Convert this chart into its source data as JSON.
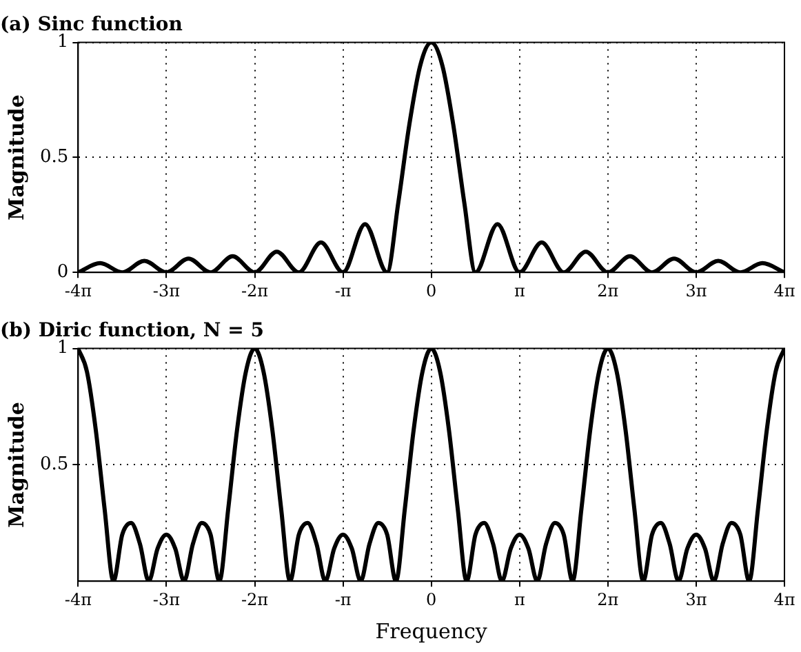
{
  "chart_data": [
    {
      "type": "line",
      "title": "(a) Sinc function",
      "ylabel": "Magnitude",
      "xlim": [
        -12.566,
        12.566
      ],
      "ylim": [
        0,
        1
      ],
      "xticks": [
        {
          "value": -12.566,
          "label": "-4π"
        },
        {
          "value": -9.425,
          "label": "-3π"
        },
        {
          "value": -6.283,
          "label": "-2π"
        },
        {
          "value": -3.142,
          "label": "-π"
        },
        0,
        {
          "value": 3.142,
          "label": "π"
        },
        {
          "value": 6.283,
          "label": "2π"
        },
        {
          "value": 9.425,
          "label": "3π"
        },
        {
          "value": 12.566,
          "label": "4π"
        }
      ],
      "yticks": [
        0,
        0.5,
        1
      ],
      "grid": true,
      "legend": false,
      "marker": "none",
      "line_style": "solid",
      "series": [
        {
          "color": "#000000",
          "x": [
            -12.566,
            -11.781,
            -10.996,
            -10.21,
            -9.425,
            -8.639,
            -7.854,
            -7.069,
            -6.283,
            -5.498,
            -4.712,
            -3.927,
            -3.142,
            -2.356,
            -1.571,
            -1.178,
            -0.785,
            -0.393,
            0,
            0.393,
            0.785,
            1.178,
            1.571,
            2.356,
            3.142,
            3.927,
            4.712,
            5.498,
            6.283,
            7.069,
            7.854,
            8.639,
            9.425,
            10.21,
            10.996,
            11.781,
            12.566
          ],
          "values": [
            0,
            0.04,
            0,
            0.05,
            0,
            0.06,
            0,
            0.07,
            0,
            0.09,
            0,
            0.13,
            0,
            0.21,
            0,
            0.3,
            0.64,
            0.9,
            1,
            0.9,
            0.64,
            0.3,
            0,
            0.21,
            0,
            0.13,
            0,
            0.09,
            0,
            0.07,
            0,
            0.06,
            0,
            0.05,
            0,
            0.04,
            0
          ]
        }
      ]
    },
    {
      "type": "line",
      "title": "(b) Diric function, N = 5",
      "xlabel": "Frequency",
      "ylabel": "Magnitude",
      "xlim": [
        -12.566,
        12.566
      ],
      "ylim": [
        0,
        1
      ],
      "xticks": [
        {
          "value": -12.566,
          "label": "-4π"
        },
        {
          "value": -9.425,
          "label": "-3π"
        },
        {
          "value": -6.283,
          "label": "-2π"
        },
        {
          "value": -3.142,
          "label": "-π"
        },
        0,
        {
          "value": 3.142,
          "label": "π"
        },
        {
          "value": 6.283,
          "label": "2π"
        },
        {
          "value": 9.425,
          "label": "3π"
        },
        {
          "value": 12.566,
          "label": "4π"
        }
      ],
      "yticks": [
        0.5,
        1
      ],
      "grid": true,
      "legend": false,
      "marker": "none",
      "line_style": "solid",
      "series": [
        {
          "color": "#000000",
          "x": [
            -12.566,
            -12.252,
            -11.938,
            -11.624,
            -11.31,
            -10.996,
            -10.681,
            -10.367,
            -10.053,
            -9.739,
            -9.425,
            -9.111,
            -8.796,
            -8.482,
            -8.168,
            -7.854,
            -7.54,
            -7.226,
            -6.912,
            -6.597,
            -6.283,
            -5.969,
            -5.655,
            -5.341,
            -5.027,
            -4.712,
            -4.398,
            -4.084,
            -3.77,
            -3.456,
            -3.142,
            -2.827,
            -2.513,
            -2.199,
            -1.885,
            -1.571,
            -1.257,
            -0.942,
            -0.628,
            -0.314,
            0,
            0.314,
            0.628,
            0.942,
            1.257,
            1.571,
            1.885,
            2.199,
            2.513,
            2.827,
            3.142,
            3.456,
            3.77,
            4.084,
            4.398,
            4.712,
            5.027,
            5.341,
            5.655,
            5.969,
            6.283,
            6.597,
            6.912,
            7.226,
            7.54,
            7.854,
            8.168,
            8.482,
            8.796,
            9.111,
            9.425,
            9.739,
            10.053,
            10.367,
            10.681,
            10.996,
            11.31,
            11.624,
            11.938,
            12.252,
            12.566
          ],
          "values": [
            1,
            0.9,
            0.65,
            0.31,
            0,
            0.2,
            0.25,
            0.16,
            0,
            0.14,
            0.2,
            0.14,
            0,
            0.16,
            0.25,
            0.2,
            0,
            0.31,
            0.65,
            0.9,
            1,
            0.9,
            0.65,
            0.31,
            0,
            0.2,
            0.25,
            0.16,
            0,
            0.14,
            0.2,
            0.14,
            0,
            0.16,
            0.25,
            0.2,
            0,
            0.31,
            0.65,
            0.9,
            1,
            0.9,
            0.65,
            0.31,
            0,
            0.2,
            0.25,
            0.16,
            0,
            0.14,
            0.2,
            0.14,
            0,
            0.16,
            0.25,
            0.2,
            0,
            0.31,
            0.65,
            0.9,
            1,
            0.9,
            0.65,
            0.31,
            0,
            0.2,
            0.25,
            0.16,
            0,
            0.14,
            0.2,
            0.14,
            0,
            0.16,
            0.25,
            0.2,
            0,
            0.31,
            0.65,
            0.9,
            1
          ]
        }
      ]
    }
  ]
}
